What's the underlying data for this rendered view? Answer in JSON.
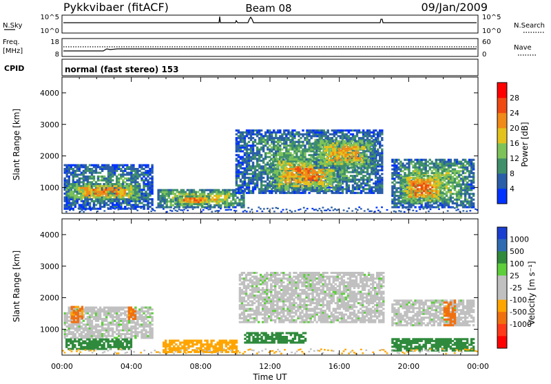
{
  "header": {
    "station": "Pykkvibaer (fitACF)",
    "beam": "Beam 08",
    "date": "09/Jan/2009"
  },
  "strip": {
    "nsky_label": "N.Sky",
    "nsky_ticks": [
      "10^5",
      "10^0"
    ],
    "nsearch_label": "N.Search",
    "nsearch_ticks": [
      "10^5",
      "10^0"
    ],
    "freq_label": "Freq.",
    "freq_unit": "[MHz]",
    "freq_ticks": [
      "18",
      "8"
    ],
    "nave_label": "Nave",
    "nave_ticks": [
      "60",
      "0"
    ],
    "cpid_label": "CPID",
    "cpid_text": "normal (fast stereo) 153"
  },
  "colors": {
    "power_scale": [
      "#0033ff",
      "#2a5ea8",
      "#3f8f6a",
      "#7dc35a",
      "#e3c21e",
      "#f08a18",
      "#ef4a12",
      "#ff0000"
    ],
    "velocity_scale": [
      "#1a3fd0",
      "#2f6bb0",
      "#2f8a3c",
      "#5ccf3a",
      "#c0c0c0",
      "#c0c0c0",
      "#ffa500",
      "#f07010",
      "#ff3a1a",
      "#ff0000"
    ]
  },
  "chart_data": [
    {
      "type": "heatmap",
      "title": "Power",
      "xlabel": "",
      "ylabel": "Slant Range [km]",
      "ylim": [
        180,
        4500
      ],
      "x_ticks": [
        "00:00",
        "04:00",
        "08:00",
        "12:00",
        "16:00",
        "20:00",
        "00:00"
      ],
      "y_ticks": [
        1000,
        2000,
        3000,
        4000
      ],
      "colorbar_label": "Power [dB]",
      "colorbar_ticks": [
        "4",
        "8",
        "12",
        "16",
        "20",
        "24",
        "28"
      ],
      "regions": [
        {
          "t0": 0.1,
          "t1": 5.2,
          "r0": 300,
          "r1": 1700,
          "core": 10
        },
        {
          "t0": 0.2,
          "t1": 4.5,
          "r0": 600,
          "r1": 1100,
          "core": 22
        },
        {
          "t0": 5.5,
          "t1": 10.5,
          "r0": 350,
          "r1": 900,
          "core": 18
        },
        {
          "t0": 6.5,
          "t1": 8.5,
          "r0": 450,
          "r1": 700,
          "core": 25
        },
        {
          "t0": 10.0,
          "t1": 18.5,
          "r0": 800,
          "r1": 2800,
          "core": 12
        },
        {
          "t0": 12.0,
          "t1": 16.0,
          "r0": 900,
          "r1": 1900,
          "core": 22
        },
        {
          "t0": 14.5,
          "t1": 18.0,
          "r0": 1600,
          "r1": 2500,
          "core": 20
        },
        {
          "t0": 19.0,
          "t1": 23.8,
          "r0": 350,
          "r1": 1900,
          "core": 14
        },
        {
          "t0": 19.5,
          "t1": 22.0,
          "r0": 500,
          "r1": 1400,
          "core": 24
        }
      ]
    },
    {
      "type": "heatmap",
      "title": "Velocity",
      "xlabel": "Time UT",
      "ylabel": "Slant Range [km]",
      "ylim": [
        180,
        4500
      ],
      "x_ticks": [
        "00:00",
        "04:00",
        "08:00",
        "12:00",
        "16:00",
        "20:00",
        "00:00"
      ],
      "y_ticks": [
        1000,
        2000,
        3000,
        4000
      ],
      "colorbar_label": "Velocity [m s⁻¹]",
      "colorbar_ticks": [
        "1000",
        "500",
        "100",
        "25",
        "-25",
        "-100",
        "-500",
        "-1000"
      ],
      "regions": [
        {
          "t0": 0.1,
          "t1": 5.2,
          "r0": 700,
          "r1": 1700,
          "core": 0
        },
        {
          "t0": 0.5,
          "t1": 1.2,
          "r0": 1200,
          "r1": 1700,
          "core": -450
        },
        {
          "t0": 3.8,
          "t1": 4.2,
          "r0": 1300,
          "r1": 1700,
          "core": -450
        },
        {
          "t0": 0.2,
          "t1": 4.0,
          "r0": 350,
          "r1": 700,
          "core": 150
        },
        {
          "t0": 5.8,
          "t1": 10.0,
          "r0": 250,
          "r1": 650,
          "core": -150
        },
        {
          "t0": 10.5,
          "t1": 14.0,
          "r0": 550,
          "r1": 900,
          "core": 150
        },
        {
          "t0": 10.2,
          "t1": 18.5,
          "r0": 1200,
          "r1": 2800,
          "core": 0
        },
        {
          "t0": 19.0,
          "t1": 23.8,
          "r0": 1100,
          "r1": 1900,
          "core": 0
        },
        {
          "t0": 19.0,
          "t1": 23.8,
          "r0": 300,
          "r1": 700,
          "core": 200
        },
        {
          "t0": 22.0,
          "t1": 22.7,
          "r0": 1100,
          "r1": 1900,
          "core": -450
        }
      ]
    }
  ]
}
